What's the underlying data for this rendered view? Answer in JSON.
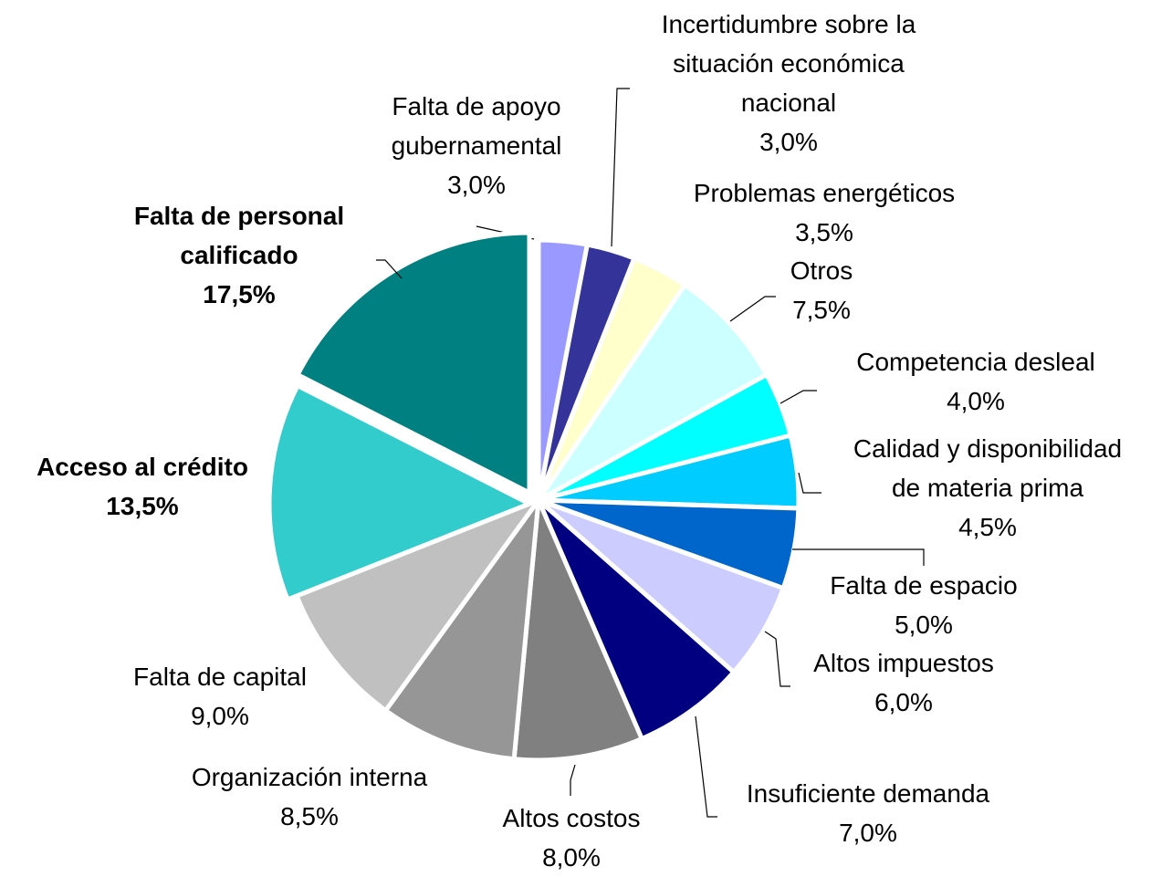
{
  "chart_data": {
    "type": "pie",
    "categories": [
      "Falta de apoyo\ngubernamental",
      "Incertidumbre sobre la\nsituación económica\nnacional",
      "Problemas energéticos",
      "Otros",
      "Competencia desleal",
      "Calidad y disponibilidad\nde materia prima",
      "Falta de espacio",
      "Altos impuestos",
      "Insuficiente demanda",
      "Altos costos",
      "Organización interna",
      "Falta de capital",
      "Acceso al crédito",
      "Falta de personal\ncalificado"
    ],
    "values": [
      3.0,
      3.0,
      3.5,
      7.5,
      4.0,
      4.5,
      5.0,
      6.0,
      7.0,
      8.0,
      8.5,
      9.0,
      13.5,
      17.5
    ],
    "value_labels": [
      "3,0%",
      "3,0%",
      "3,5%",
      "7,5%",
      "4,0%",
      "4,5%",
      "5,0%",
      "6,0%",
      "7,0%",
      "8,0%",
      "8,5%",
      "9,0%",
      "13,5%",
      "17,5%"
    ],
    "colors": [
      "#9999ff",
      "#333399",
      "#ffffcc",
      "#ccffff",
      "#00ffff",
      "#00ccff",
      "#0066cc",
      "#ccccff",
      "#000080",
      "#808080",
      "#969696",
      "#c0c0c0",
      "#33cccc",
      "#008080"
    ]
  }
}
